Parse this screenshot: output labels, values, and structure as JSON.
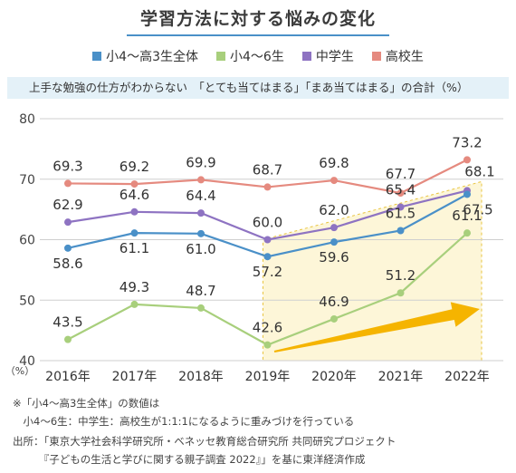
{
  "header": {
    "title": "学習方法に対する悩みの変化",
    "subtitle": "上手な勉強の仕方がわからない　「とても当てはまる」「まあ当てはまる」の合計（%）"
  },
  "legend": [
    {
      "name": "小4～高3生全体",
      "color": "#4a90c8"
    },
    {
      "name": "小4～6生",
      "color": "#a8cf7c"
    },
    {
      "name": "中学生",
      "color": "#8e73c2"
    },
    {
      "name": "高校生",
      "color": "#e58a7f"
    }
  ],
  "chart_data": {
    "type": "line",
    "title": "学習方法に対する悩みの変化",
    "ylabel": "（%）",
    "categories": [
      "2016年",
      "2017年",
      "2018年",
      "2019年",
      "2020年",
      "2021年",
      "2022年"
    ],
    "ylim": [
      40,
      80
    ],
    "yticks": [
      40,
      50,
      60,
      70,
      80
    ],
    "grid": true,
    "legend_position": "top",
    "series": [
      {
        "name": "高校生",
        "color": "#e58a7f",
        "values": [
          69.3,
          69.2,
          69.9,
          68.7,
          69.8,
          67.7,
          73.2
        ]
      },
      {
        "name": "中学生",
        "color": "#8e73c2",
        "values": [
          62.9,
          64.6,
          64.4,
          60.0,
          62.0,
          65.4,
          68.1
        ]
      },
      {
        "name": "小4～高3生全体",
        "color": "#4a90c8",
        "values": [
          58.6,
          61.1,
          61.0,
          57.2,
          59.6,
          61.5,
          67.5
        ]
      },
      {
        "name": "小4～6生",
        "color": "#a8cf7c",
        "values": [
          43.5,
          49.3,
          48.7,
          42.6,
          46.9,
          51.2,
          61.1
        ]
      }
    ],
    "labels": {
      "高校生": [
        "69.3",
        "69.2",
        "69.9",
        "68.7",
        "69.8",
        "67.7",
        "73.2"
      ],
      "中学生": [
        "62.9",
        "64.6",
        "64.4",
        "60.0",
        "62.0",
        "65.4",
        "68.1"
      ],
      "小4～高3生全体": [
        "58.6",
        "61.1",
        "61.0",
        "57.2",
        "59.6",
        "61.5",
        "67.5"
      ],
      "小4～6生": [
        "43.5",
        "49.3",
        "48.7",
        "42.6",
        "46.9",
        "51.2",
        "61.1"
      ]
    },
    "highlight": {
      "from_category": "2019年",
      "to_category": "2022年",
      "fill": "#fdf6d8",
      "arrow_color": "#f5b400"
    }
  },
  "notes": [
    "※「小4～高3生全体」の数値は",
    "　小4～6生：中学生：高校生が1:1:1になるように重みづけを行っている",
    "出所：「東京大学社会科学研究所・ベネッセ教育総合研究所 共同研究プロジェクト",
    "　　　『子どもの生活と学びに関する親子調査 2022』」を基に東洋経済作成"
  ]
}
